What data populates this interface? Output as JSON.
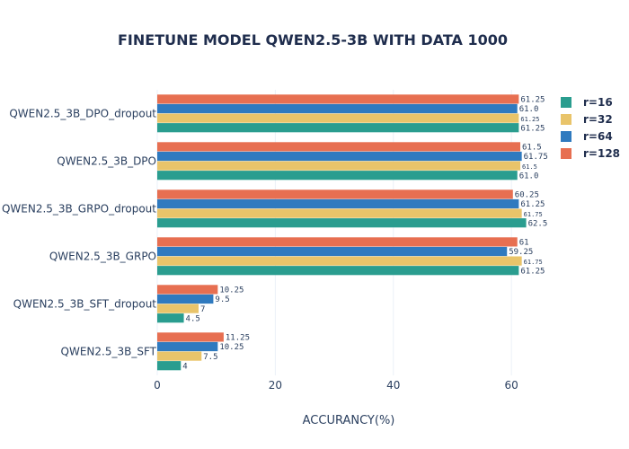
{
  "chart_data": {
    "type": "bar",
    "orientation": "horizontal",
    "title": "FINETUNE MODEL QWEN2.5-3B WITH DATA 1000",
    "xlabel": "ACCURANCY(%)",
    "ylabel": "",
    "xlim": [
      0,
      65
    ],
    "x_ticks": [
      0,
      20,
      40,
      60
    ],
    "grid": true,
    "legend_position": "top-right",
    "categories": [
      "QWEN2.5_3B_DPO_dropout",
      "QWEN2.5_3B_DPO",
      "QWEN2.5_3B_GRPO_dropout",
      "QWEN2.5_3B_GRPO",
      "QWEN2.5_3B_SFT_dropout",
      "QWEN2.5_3B_SFT"
    ],
    "series": [
      {
        "name": "r=16",
        "color": "#2a9d8f",
        "values": [
          61.25,
          61.0,
          62.5,
          61.25,
          4.5,
          4
        ],
        "labels": [
          "61.25",
          "61.0",
          "62.5",
          "61.25",
          "4.5",
          "4"
        ]
      },
      {
        "name": "r=32",
        "color": "#e9c46a",
        "values": [
          61.25,
          61.5,
          61.75,
          61.75,
          7,
          7.5
        ],
        "labels": [
          "61.25",
          "61.5",
          "61.75",
          "61.75",
          "7",
          "7.5"
        ]
      },
      {
        "name": "r=64",
        "color": "#2f7abf",
        "values": [
          61.0,
          61.75,
          61.25,
          59.25,
          9.5,
          10.25
        ],
        "labels": [
          "61.0",
          "61.75",
          "61.25",
          "59.25",
          "9.5",
          "10.25"
        ]
      },
      {
        "name": "r=128",
        "color": "#e76f51",
        "values": [
          61.25,
          61.5,
          60.25,
          61,
          10.25,
          11.25
        ],
        "labels": [
          "61.25",
          "61.5",
          "60.25",
          "61",
          "10.25",
          "11.25"
        ]
      }
    ]
  }
}
